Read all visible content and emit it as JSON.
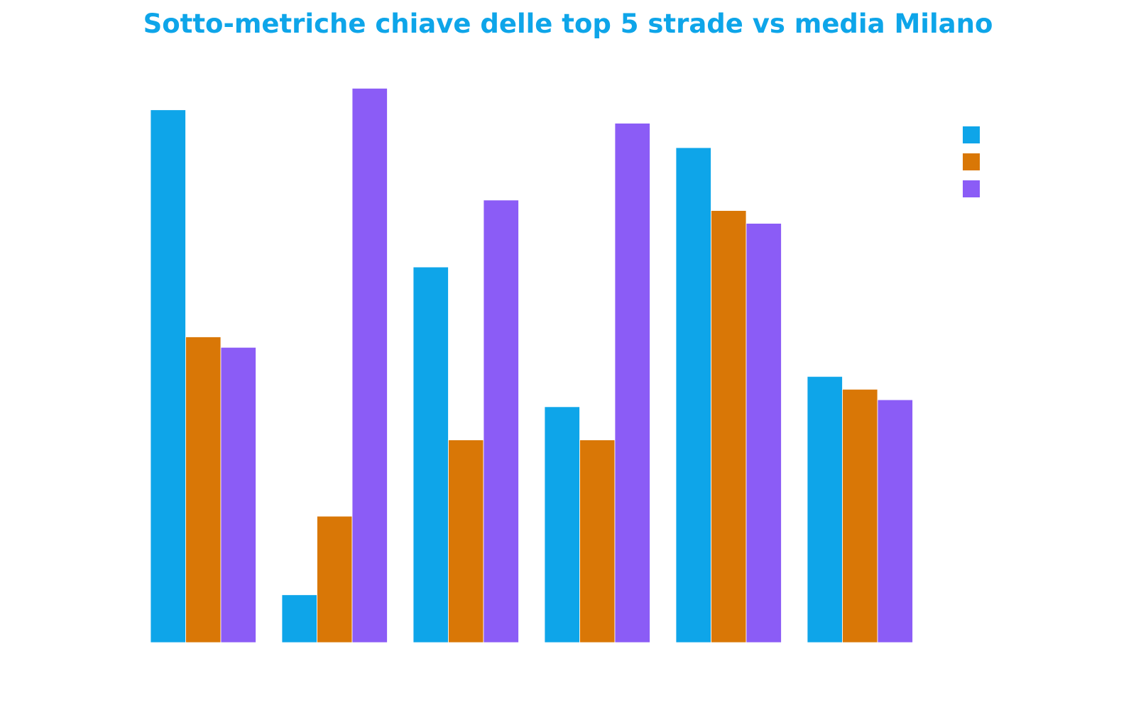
{
  "chart_data": {
    "type": "bar",
    "title": "Sotto-metriche chiave delle top 5 strade vs media Milano",
    "title_color": "#0ea5e9",
    "categories": [
      "",
      "",
      "",
      "",
      "",
      ""
    ],
    "series": [
      {
        "color": "#0ea5e9",
        "values": [
          9.15,
          0.82,
          6.45,
          4.05,
          8.5,
          4.57
        ]
      },
      {
        "color": "#d97706",
        "values": [
          5.25,
          2.17,
          3.48,
          3.48,
          7.42,
          4.35
        ]
      },
      {
        "color": "#8b5cf6",
        "values": [
          5.07,
          9.52,
          7.6,
          8.92,
          7.2,
          4.17
        ]
      }
    ],
    "xlabel": "",
    "ylabel": "",
    "ylim": [
      0,
      10
    ],
    "grid": false,
    "legend": "top-right"
  }
}
